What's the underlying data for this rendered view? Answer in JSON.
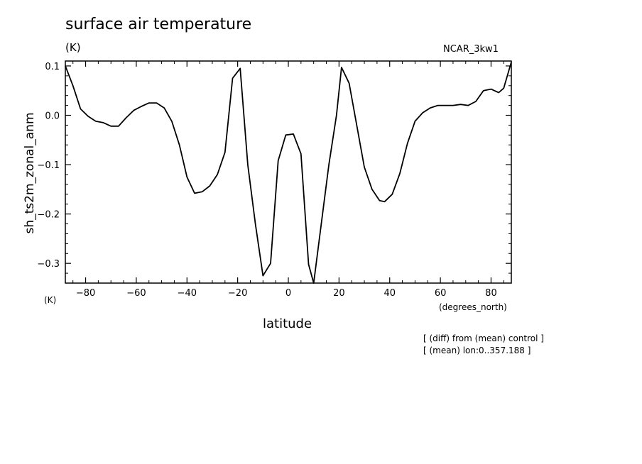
{
  "header": {
    "title": "surface air temperature",
    "units": "(K)",
    "model": "NCAR_3kw1"
  },
  "axes": {
    "ylabel": "sh_ts2m_zonal_anm",
    "yunits": "(K)",
    "xlabel": "latitude",
    "xunits": "(degrees_north)"
  },
  "notes": [
    "[ (diff) from (mean) control ]",
    "[ (mean) lon:0..357.188 ]"
  ],
  "chart_data": {
    "type": "line",
    "title": "surface air temperature",
    "xlabel": "latitude",
    "ylabel": "sh_ts2m_zonal_anm",
    "xlim": [
      -88,
      88
    ],
    "ylim": [
      -0.34,
      0.11
    ],
    "xticks": [
      -80,
      -60,
      -40,
      -20,
      0,
      20,
      40,
      60,
      80
    ],
    "yticks": [
      0.1,
      0.0,
      -0.1,
      -0.2,
      -0.3
    ],
    "xtick_labels": [
      "−80",
      "−60",
      "−40",
      "−20",
      "0",
      "20",
      "40",
      "60",
      "80"
    ],
    "ytick_labels": [
      "0.1",
      "0.0",
      "−0.1",
      "−0.2",
      "−0.3"
    ],
    "grid": false,
    "series": [
      {
        "x": [
          -88,
          -85,
          -82,
          -79,
          -76,
          -73,
          -70,
          -67,
          -64,
          -61,
          -58,
          -55,
          -52,
          -49,
          -46,
          -43,
          -40,
          -37,
          -34,
          -31,
          -28,
          -25,
          -22,
          -19,
          -16,
          -13,
          -10,
          -7,
          -4,
          -1,
          2,
          5,
          8,
          10,
          13,
          16,
          19,
          21,
          24,
          27,
          30,
          33,
          36,
          38,
          41,
          44,
          47,
          50,
          53,
          56,
          59,
          62,
          65,
          68,
          71,
          74,
          77,
          80,
          83,
          85,
          88
        ],
        "y": [
          0.1,
          0.06,
          0.013,
          -0.002,
          -0.012,
          -0.015,
          -0.022,
          -0.022,
          -0.005,
          0.01,
          0.018,
          0.025,
          0.025,
          0.015,
          -0.012,
          -0.06,
          -0.125,
          -0.158,
          -0.155,
          -0.143,
          -0.12,
          -0.075,
          0.075,
          0.095,
          -0.1,
          -0.22,
          -0.325,
          -0.3,
          -0.092,
          -0.04,
          -0.038,
          -0.078,
          -0.302,
          -0.34,
          -0.22,
          -0.1,
          0.0,
          0.097,
          0.065,
          -0.02,
          -0.105,
          -0.15,
          -0.173,
          -0.175,
          -0.16,
          -0.118,
          -0.057,
          -0.012,
          0.005,
          0.015,
          0.02,
          0.02,
          0.02,
          0.022,
          0.02,
          0.028,
          0.05,
          0.053,
          0.046,
          0.055,
          0.108
        ]
      }
    ]
  }
}
